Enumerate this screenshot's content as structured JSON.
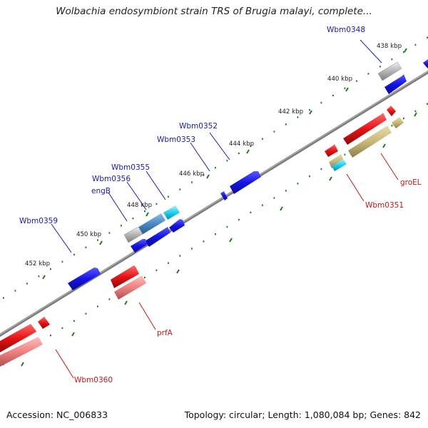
{
  "title": "Wolbachia endosymbiont strain TRS of Brugia malayi, complete...",
  "footer": {
    "accession": "Accession: NC_006833",
    "stats": "Topology: circular; Length: 1,080,084 bp; Genes: 842"
  },
  "ruler": {
    "ticks": [
      "438 kbp",
      "440 kbp",
      "442 kbp",
      "444 kbp",
      "446 kbp",
      "448 kbp",
      "450 kbp",
      "452 kbp"
    ]
  },
  "genes": {
    "wbm0348": "Wbm0348",
    "wbm0352": "Wbm0352",
    "wbm0353": "Wbm0353",
    "wbm0355": "Wbm0355",
    "wbm0356": "Wbm0356",
    "engB": "engB",
    "wbm0359": "Wbm0359",
    "wbm0351": "Wbm0351",
    "groEL": "groEL",
    "prfA": "prfA",
    "wbm0360": "Wbm0360"
  },
  "colors": {
    "plus_strand_label": "#1a1aa8",
    "minus_strand_label": "#c41818",
    "backbone": "#7a7a7a",
    "tick": "#1f7a1f",
    "cds_blue": "#1414e6",
    "cds_red": "#e61414",
    "rrna_pink": "#f08080",
    "grey": "#b4b4b4",
    "olive": "#c8b878",
    "cyan": "#20d0f0",
    "steel": "#4a88c4"
  }
}
